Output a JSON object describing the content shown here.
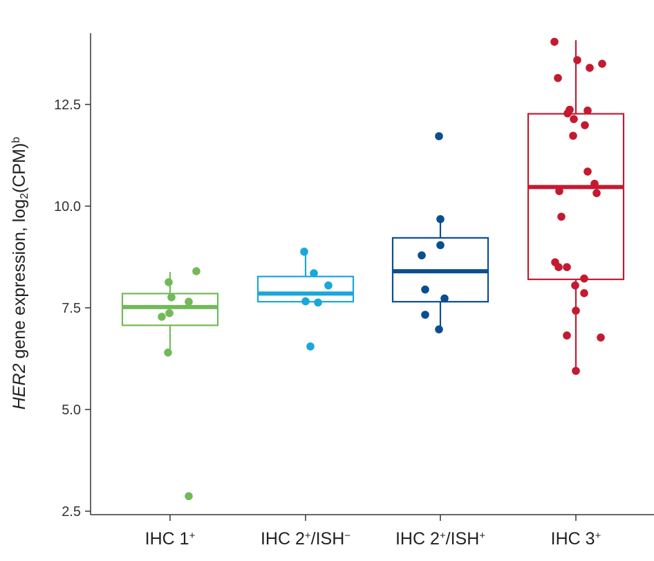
{
  "chart_data": {
    "type": "box",
    "ylabel": {
      "italic": "HER2",
      "text1": " gene expression, log",
      "sub": "2",
      "text2": "(CPM)",
      "sup": "b"
    },
    "ylim": [
      2.35,
      14.1
    ],
    "yticks": [
      2.5,
      5.0,
      7.5,
      10.0,
      12.5
    ],
    "ytick_labels": [
      "2.5",
      "5.0",
      "7.5",
      "10.0",
      "12.5"
    ],
    "grid": false,
    "groups": [
      {
        "label": "IHC 1",
        "label_sup": "+",
        "label_mid": "",
        "label_sup2": "",
        "color": "#72b95a",
        "q1": 7.07,
        "median": 7.52,
        "q3": 7.85,
        "whisker_low": 6.4,
        "whisker_high": 8.38,
        "points": [
          [
            0.38,
            8.4
          ],
          [
            -0.02,
            8.13
          ],
          [
            0.02,
            7.76
          ],
          [
            0.27,
            7.65
          ],
          [
            -0.01,
            7.37
          ],
          [
            -0.12,
            7.28
          ],
          [
            -0.03,
            6.4
          ],
          [
            0.27,
            2.87
          ]
        ]
      },
      {
        "label": "IHC 2",
        "label_sup": "+",
        "label_mid": "/ISH",
        "label_sup2": "−",
        "color": "#1aa7dc",
        "q1": 7.65,
        "median": 7.85,
        "q3": 8.27,
        "whisker_low": 7.65,
        "whisker_high": 8.88,
        "points": [
          [
            -0.02,
            8.88
          ],
          [
            0.12,
            8.35
          ],
          [
            0.33,
            8.05
          ],
          [
            0.0,
            7.66
          ],
          [
            0.18,
            7.63
          ],
          [
            0.07,
            6.55
          ]
        ]
      },
      {
        "label": "IHC 2",
        "label_sup": "+",
        "label_mid": "/ISH",
        "label_sup2": "+",
        "color": "#0a4e8f",
        "q1": 7.65,
        "median": 8.4,
        "q3": 9.22,
        "whisker_low": 6.97,
        "whisker_high": 9.7,
        "points": [
          [
            -0.02,
            11.72
          ],
          [
            0.0,
            9.68
          ],
          [
            0.0,
            9.04
          ],
          [
            -0.27,
            8.79
          ],
          [
            -0.22,
            7.95
          ],
          [
            0.06,
            7.73
          ],
          [
            -0.22,
            7.33
          ],
          [
            -0.02,
            6.97
          ]
        ]
      },
      {
        "label": "IHC 3",
        "label_sup": "+",
        "label_mid": "",
        "label_sup2": "",
        "color": "#c41a30",
        "q1": 8.2,
        "median": 10.47,
        "q3": 12.27,
        "whisker_low": 5.95,
        "whisker_high": 14.08,
        "points": [
          [
            -0.31,
            14.04
          ],
          [
            0.02,
            13.59
          ],
          [
            0.38,
            13.5
          ],
          [
            0.2,
            13.4
          ],
          [
            -0.26,
            13.15
          ],
          [
            -0.09,
            12.37
          ],
          [
            0.17,
            12.35
          ],
          [
            -0.12,
            12.28
          ],
          [
            -0.03,
            12.14
          ],
          [
            0.13,
            11.99
          ],
          [
            -0.04,
            11.73
          ],
          [
            0.17,
            10.85
          ],
          [
            0.27,
            10.55
          ],
          [
            -0.24,
            10.37
          ],
          [
            0.3,
            10.32
          ],
          [
            -0.21,
            9.74
          ],
          [
            -0.3,
            8.62
          ],
          [
            -0.25,
            8.5
          ],
          [
            -0.13,
            8.5
          ],
          [
            0.12,
            8.22
          ],
          [
            -0.01,
            8.05
          ],
          [
            0.12,
            7.86
          ],
          [
            0.0,
            7.43
          ],
          [
            -0.13,
            6.82
          ],
          [
            0.36,
            6.77
          ],
          [
            0.0,
            5.95
          ]
        ]
      }
    ]
  }
}
